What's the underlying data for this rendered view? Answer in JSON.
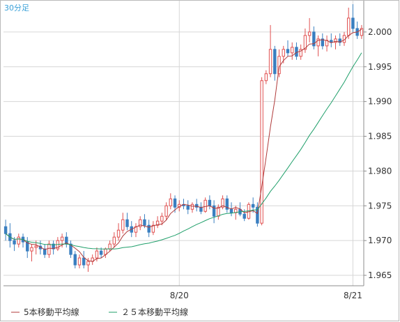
{
  "chart_data": {
    "type": "candlestick",
    "timeframe": "30分足",
    "ylim": [
      1.9635,
      2.0045
    ],
    "y_ticks": [
      "1.965",
      "1.970",
      "1.975",
      "1.980",
      "1.985",
      "1.990",
      "1.995",
      "2.000"
    ],
    "x_ticks": [
      {
        "label": "8/20",
        "index": 40
      },
      {
        "label": "8/21",
        "index": 80
      }
    ],
    "legend": [
      {
        "name": "5本移動平均線",
        "color": "#b03a3a"
      },
      {
        "name": "２５本移動平均線",
        "color": "#1f9f6a"
      }
    ],
    "colors": {
      "up": "#e05050",
      "down": "#3a7fc0",
      "grid": "#d6d6d6",
      "axis": "#8c8c8c"
    },
    "candles": [
      [
        1.972,
        1.973,
        1.97,
        1.971
      ],
      [
        1.971,
        1.9725,
        1.969,
        1.97
      ],
      [
        1.97,
        1.9705,
        1.9685,
        1.9695
      ],
      [
        1.9695,
        1.971,
        1.969,
        1.9705
      ],
      [
        1.9705,
        1.971,
        1.969,
        1.9698
      ],
      [
        1.9698,
        1.9705,
        1.9675,
        1.9685
      ],
      [
        1.9685,
        1.9695,
        1.967,
        1.969
      ],
      [
        1.969,
        1.97,
        1.968,
        1.9692
      ],
      [
        1.9692,
        1.97,
        1.968,
        1.9688
      ],
      [
        1.9688,
        1.9695,
        1.9675,
        1.968
      ],
      [
        1.968,
        1.97,
        1.9675,
        1.9695
      ],
      [
        1.9695,
        1.97,
        1.968,
        1.9688
      ],
      [
        1.9688,
        1.9705,
        1.9685,
        1.97
      ],
      [
        1.97,
        1.971,
        1.969,
        1.9705
      ],
      [
        1.9705,
        1.9712,
        1.969,
        1.9695
      ],
      [
        1.9695,
        1.97,
        1.9675,
        1.968
      ],
      [
        1.968,
        1.9685,
        1.966,
        1.9665
      ],
      [
        1.9665,
        1.968,
        1.966,
        1.9675
      ],
      [
        1.9675,
        1.9685,
        1.966,
        1.9665
      ],
      [
        1.9665,
        1.9675,
        1.9655,
        1.967
      ],
      [
        1.967,
        1.968,
        1.9665,
        1.9675
      ],
      [
        1.9675,
        1.969,
        1.967,
        1.9685
      ],
      [
        1.9685,
        1.969,
        1.9675,
        1.968
      ],
      [
        1.968,
        1.969,
        1.9675,
        1.9688
      ],
      [
        1.9688,
        1.97,
        1.9685,
        1.9695
      ],
      [
        1.9695,
        1.9712,
        1.969,
        1.9705
      ],
      [
        1.9705,
        1.9725,
        1.97,
        1.9715
      ],
      [
        1.9715,
        1.974,
        1.971,
        1.973
      ],
      [
        1.973,
        1.974,
        1.9715,
        1.972
      ],
      [
        1.972,
        1.9728,
        1.9705,
        1.9712
      ],
      [
        1.9712,
        1.9725,
        1.9705,
        1.972
      ],
      [
        1.972,
        1.9735,
        1.9715,
        1.973
      ],
      [
        1.973,
        1.9738,
        1.9718,
        1.9722
      ],
      [
        1.9722,
        1.973,
        1.9705,
        1.9712
      ],
      [
        1.9712,
        1.9728,
        1.9708,
        1.9722
      ],
      [
        1.9722,
        1.9735,
        1.9718,
        1.9728
      ],
      [
        1.9728,
        1.974,
        1.9722,
        1.9735
      ],
      [
        1.9735,
        1.9755,
        1.973,
        1.975
      ],
      [
        1.975,
        1.9768,
        1.9745,
        1.976
      ],
      [
        1.976,
        1.9765,
        1.974,
        1.9748
      ],
      [
        1.9748,
        1.9758,
        1.9742,
        1.9752
      ],
      [
        1.9752,
        1.976,
        1.9745,
        1.975
      ],
      [
        1.975,
        1.9758,
        1.9738,
        1.9745
      ],
      [
        1.9745,
        1.9755,
        1.974,
        1.9752
      ],
      [
        1.9752,
        1.976,
        1.9742,
        1.9748
      ],
      [
        1.9748,
        1.9755,
        1.9738,
        1.9742
      ],
      [
        1.9742,
        1.9762,
        1.974,
        1.9758
      ],
      [
        1.9758,
        1.9765,
        1.9745,
        1.975
      ],
      [
        1.975,
        1.9758,
        1.9725,
        1.9735
      ],
      [
        1.9735,
        1.9752,
        1.973,
        1.9748
      ],
      [
        1.9748,
        1.9765,
        1.9745,
        1.976
      ],
      [
        1.976,
        1.9765,
        1.974,
        1.9745
      ],
      [
        1.9745,
        1.9755,
        1.9735,
        1.974
      ],
      [
        1.974,
        1.975,
        1.973,
        1.9745
      ],
      [
        1.9745,
        1.9755,
        1.9735,
        1.9738
      ],
      [
        1.9738,
        1.9745,
        1.9728,
        1.9732
      ],
      [
        1.9732,
        1.9755,
        1.973,
        1.9752
      ],
      [
        1.9752,
        1.9762,
        1.974,
        1.9748
      ],
      [
        1.9748,
        1.9755,
        1.972,
        1.9725
      ],
      [
        1.9725,
        1.9935,
        1.9722,
        1.993
      ],
      [
        1.993,
        1.9945,
        1.9925,
        1.994
      ],
      [
        1.994,
        2.001,
        1.9935,
        1.9975
      ],
      [
        1.9975,
        1.998,
        1.993,
        1.994
      ],
      [
        1.994,
        1.9975,
        1.9935,
        1.9965
      ],
      [
        1.9965,
        1.998,
        1.9955,
        1.9975
      ],
      [
        1.9975,
        1.9988,
        1.9965,
        1.997
      ],
      [
        1.997,
        1.9985,
        1.996,
        1.9978
      ],
      [
        1.9978,
        1.9985,
        1.996,
        1.9965
      ],
      [
        1.9965,
        1.9982,
        1.996,
        1.9975
      ],
      [
        1.9975,
        2.0005,
        1.997,
        1.9995
      ],
      [
        1.9995,
        2.002,
        1.9985,
        2.0
      ],
      [
        2.0,
        2.0008,
        1.9975,
        1.998
      ],
      [
        1.998,
        1.9995,
        1.9965,
        1.999
      ],
      [
        1.999,
        1.9998,
        1.9975,
        1.998
      ],
      [
        1.998,
        1.9995,
        1.9972,
        1.9988
      ],
      [
        1.9988,
        1.9998,
        1.9978,
        1.9985
      ],
      [
        1.9985,
        1.9995,
        1.9975,
        1.999
      ],
      [
        1.999,
        1.9998,
        1.998,
        1.9985
      ],
      [
        1.9985,
        2.0,
        1.998,
        1.9995
      ],
      [
        1.9995,
        2.0035,
        1.999,
        2.002
      ],
      [
        2.002,
        2.004,
        2.0,
        2.0005
      ],
      [
        2.0005,
        2.0015,
        1.999,
        1.9995
      ],
      [
        1.9995,
        2.001,
        1.999,
        2.0005
      ]
    ]
  }
}
